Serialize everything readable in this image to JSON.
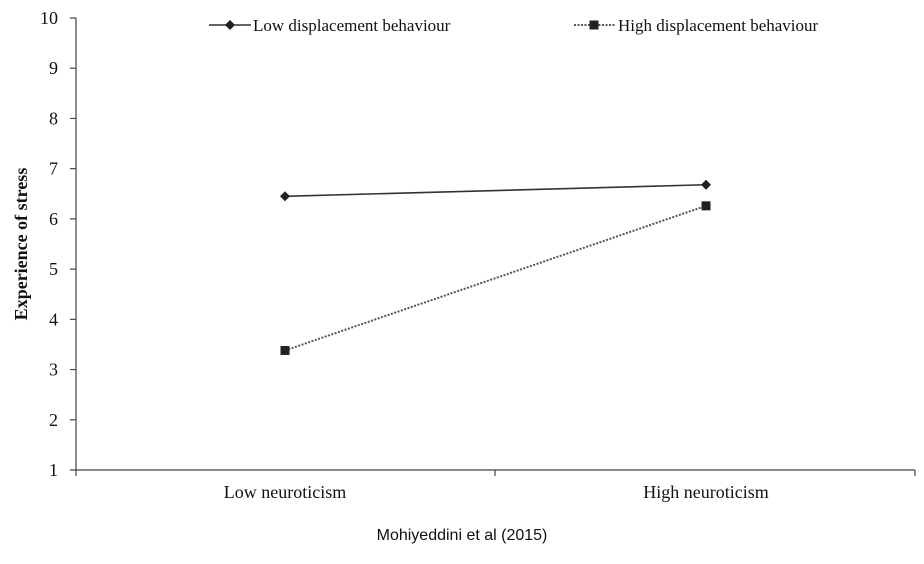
{
  "chart_data": {
    "type": "line",
    "categories": [
      "Low neuroticism",
      "High neuroticism"
    ],
    "series": [
      {
        "name": "Low displacement behaviour",
        "values": [
          6.45,
          6.68
        ],
        "marker": "diamond",
        "line": "solid"
      },
      {
        "name": "High displacement behaviour",
        "values": [
          3.38,
          6.26
        ],
        "marker": "square",
        "line": "dotted"
      }
    ],
    "ylabel": "Experience of stress",
    "xlabel": "",
    "ylim": [
      1,
      10
    ],
    "yticks": [
      1,
      2,
      3,
      4,
      5,
      6,
      7,
      8,
      9,
      10
    ],
    "grid": false,
    "legend_position": "top"
  },
  "caption": "Mohiyeddini et al (2015)",
  "colors": {
    "solid_line": "#333333",
    "dotted_line": "#555555",
    "axis": "#444444",
    "text": "#111111"
  }
}
